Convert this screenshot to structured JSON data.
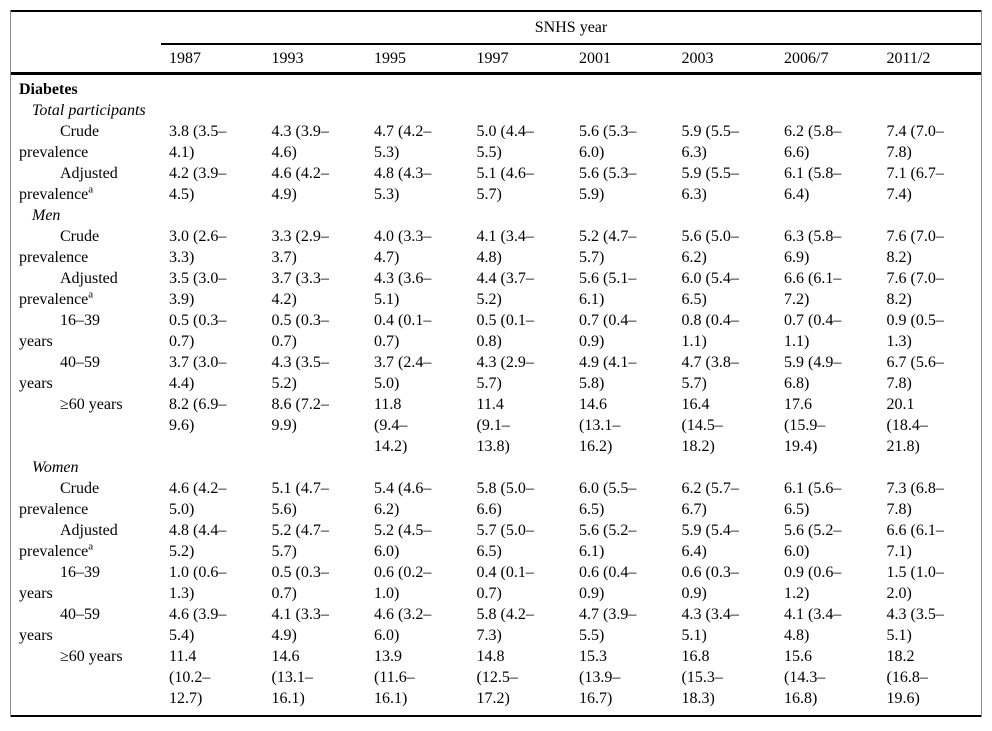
{
  "table": {
    "group_header": "SNHS year",
    "years": [
      "1987",
      "1993",
      "1995",
      "1997",
      "2001",
      "2003",
      "2006/7",
      "2011/2"
    ],
    "rows": [
      {
        "type": "section",
        "label": "Diabetes"
      },
      {
        "type": "subsection",
        "label": "Total participants"
      },
      {
        "type": "data",
        "label": "Crude\nprevalence",
        "cells": [
          "3.8 (3.5–\n4.1)",
          "4.3 (3.9–\n4.6)",
          "4.7 (4.2–\n5.3)",
          "5.0 (4.4–\n5.5)",
          "5.6 (5.3–\n6.0)",
          "5.9 (5.5–\n6.3)",
          "6.2 (5.8–\n6.6)",
          "7.4 (7.0–\n7.8)"
        ]
      },
      {
        "type": "data",
        "label": "Adjusted\nprevalence",
        "sup": "a",
        "cells": [
          "4.2 (3.9–\n4.5)",
          "4.6 (4.2–\n4.9)",
          "4.8 (4.3–\n5.3)",
          "5.1 (4.6–\n5.7)",
          "5.6 (5.3–\n5.9)",
          "5.9 (5.5–\n6.3)",
          "6.1 (5.8–\n6.4)",
          "7.1 (6.7–\n7.4)"
        ]
      },
      {
        "type": "subsection",
        "label": "Men"
      },
      {
        "type": "data",
        "label": "Crude\nprevalence",
        "cells": [
          "3.0 (2.6–\n3.3)",
          "3.3 (2.9–\n3.7)",
          "4.0 (3.3–\n4.7)",
          "4.1 (3.4–\n4.8)",
          "5.2 (4.7–\n5.7)",
          "5.6 (5.0–\n6.2)",
          "6.3 (5.8–\n6.9)",
          "7.6 (7.0–\n8.2)"
        ]
      },
      {
        "type": "data",
        "label": "Adjusted\nprevalence",
        "sup": "a",
        "cells": [
          "3.5 (3.0–\n3.9)",
          "3.7 (3.3–\n4.2)",
          "4.3 (3.6–\n5.1)",
          "4.4 (3.7–\n5.2)",
          "5.6 (5.1–\n6.1)",
          "6.0 (5.4–\n6.5)",
          "6.6 (6.1–\n7.2)",
          "7.6 (7.0–\n8.2)"
        ]
      },
      {
        "type": "data",
        "label": "16–39\nyears",
        "cells": [
          "0.5 (0.3–\n0.7)",
          "0.5 (0.3–\n0.7)",
          "0.4 (0.1–\n0.7)",
          "0.5 (0.1–\n0.8)",
          "0.7 (0.4–\n0.9)",
          "0.8 (0.4–\n1.1)",
          "0.7 (0.4–\n1.1)",
          "0.9 (0.5–\n1.3)"
        ]
      },
      {
        "type": "data",
        "label": "40–59\nyears",
        "cells": [
          "3.7 (3.0–\n4.4)",
          "4.3 (3.5–\n5.2)",
          "3.7 (2.4–\n5.0)",
          "4.3 (2.9–\n5.7)",
          "4.9 (4.1–\n5.8)",
          "4.7 (3.8–\n5.7)",
          "5.9 (4.9–\n6.8)",
          "6.7 (5.6–\n7.8)"
        ]
      },
      {
        "type": "data",
        "label": "≥60 years",
        "cells": [
          "8.2 (6.9–\n9.6)",
          "8.6 (7.2–\n9.9)",
          "11.8\n(9.4–\n14.2)",
          "11.4\n(9.1–\n13.8)",
          "14.6\n(13.1–\n16.2)",
          "16.4\n(14.5–\n18.2)",
          "17.6\n(15.9–\n19.4)",
          "20.1\n(18.4–\n21.8)"
        ]
      },
      {
        "type": "subsection",
        "label": "Women"
      },
      {
        "type": "data",
        "label": "Crude\nprevalence",
        "cells": [
          "4.6 (4.2–\n5.0)",
          "5.1 (4.7–\n5.6)",
          "5.4 (4.6–\n6.2)",
          "5.8 (5.0–\n6.6)",
          "6.0 (5.5–\n6.5)",
          "6.2 (5.7–\n6.7)",
          "6.1 (5.6–\n6.5)",
          "7.3 (6.8–\n7.8)"
        ]
      },
      {
        "type": "data",
        "label": "Adjusted\nprevalence",
        "sup": "a",
        "cells": [
          "4.8 (4.4–\n5.2)",
          "5.2 (4.7–\n5.7)",
          "5.2 (4.5–\n6.0)",
          "5.7 (5.0–\n6.5)",
          "5.6 (5.2–\n6.1)",
          "5.9 (5.4–\n6.4)",
          "5.6 (5.2–\n6.0)",
          "6.6 (6.1–\n7.1)"
        ]
      },
      {
        "type": "data",
        "label": "16–39\nyears",
        "cells": [
          "1.0 (0.6–\n1.3)",
          "0.5 (0.3–\n0.7)",
          "0.6 (0.2–\n1.0)",
          "0.4 (0.1–\n0.7)",
          "0.6 (0.4–\n0.9)",
          "0.6 (0.3–\n0.9)",
          "0.9 (0.6–\n1.2)",
          "1.5 (1.0–\n2.0)"
        ]
      },
      {
        "type": "data",
        "label": "40–59\nyears",
        "cells": [
          "4.6 (3.9–\n5.4)",
          "4.1 (3.3–\n4.9)",
          "4.6 (3.2–\n6.0)",
          "5.8 (4.2–\n7.3)",
          "4.7 (3.9–\n5.5)",
          "4.3 (3.4–\n5.1)",
          "4.1 (3.4–\n4.8)",
          "4.3 (3.5–\n5.1)"
        ]
      },
      {
        "type": "data",
        "label": "≥60 years",
        "cells": [
          "11.4\n(10.2–\n12.7)",
          "14.6\n(13.1–\n16.1)",
          "13.9\n(11.6–\n16.1)",
          "14.8\n(12.5–\n17.2)",
          "15.3\n(13.9–\n16.7)",
          "16.8\n(15.3–\n18.3)",
          "15.6\n(14.3–\n16.8)",
          "18.2\n(16.8–\n19.6)"
        ]
      }
    ],
    "colors": {
      "rule": "#000000",
      "frame_side": "#8a8a8a",
      "text": "#000000",
      "background": "#ffffff"
    }
  }
}
